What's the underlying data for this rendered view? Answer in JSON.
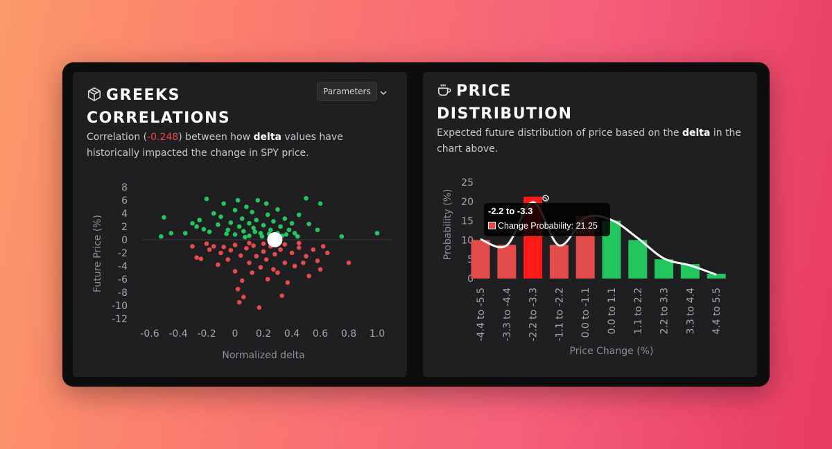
{
  "left_panel": {
    "title_line1": "GREEKS",
    "title_line2": "CORRELATIONS",
    "icon": "cube-icon",
    "parameters_label": "Parameters",
    "desc_pre": "Correlation (",
    "desc_value": "-0.248",
    "desc_mid": ") between how ",
    "desc_bold": "delta",
    "desc_post": " values have historically impacted the change in SPY price."
  },
  "right_panel": {
    "title_line1": "PRICE",
    "title_line2": "DISTRIBUTION",
    "icon": "coffee-cup-icon",
    "desc_pre": "Expected future distribution of price based on the ",
    "desc_bold": "delta",
    "desc_post": " in the chart above."
  },
  "tooltip": {
    "title": "-2.2 to -3.3",
    "label": "Change Probability: 21.25"
  },
  "colors": {
    "positive": "#22c55e",
    "negative": "#e44b4b",
    "highlight": "#ff1a1a",
    "marker": "#ffffff"
  },
  "chart_data": [
    {
      "type": "scatter",
      "xlabel": "Normalized delta",
      "ylabel": "Future Price (%)",
      "xlim": [
        -0.6,
        1.0
      ],
      "ylim": [
        -12,
        8
      ],
      "xticks": [
        "-0.6",
        "-0.4",
        "-0.2",
        "0",
        "0.2",
        "0.4",
        "0.6",
        "0.8",
        "1.0"
      ],
      "yticks": [
        "8",
        "6",
        "4",
        "2",
        "0",
        "-2",
        "-4",
        "-6",
        "-8",
        "-10",
        "-12"
      ],
      "current_point": {
        "x": 0.28,
        "y": 0.0
      },
      "series": [
        {
          "name": "positive",
          "points": [
            [
              -0.5,
              3.4
            ],
            [
              -0.52,
              0.5
            ],
            [
              -0.45,
              1.0
            ],
            [
              -0.35,
              1.0
            ],
            [
              -0.3,
              2.5
            ],
            [
              -0.27,
              2.0
            ],
            [
              -0.25,
              3.0
            ],
            [
              -0.2,
              6.2
            ],
            [
              -0.18,
              1.2
            ],
            [
              -0.15,
              4.0
            ],
            [
              -0.12,
              2.3
            ],
            [
              -0.1,
              3.5
            ],
            [
              -0.08,
              5.5
            ],
            [
              -0.05,
              1.5
            ],
            [
              -0.03,
              2.6
            ],
            [
              0.0,
              4.5
            ],
            [
              0.0,
              0.8
            ],
            [
              0.02,
              6.0
            ],
            [
              0.03,
              2.0
            ],
            [
              0.05,
              3.2
            ],
            [
              0.06,
              1.3
            ],
            [
              0.08,
              5.0
            ],
            [
              0.1,
              2.5
            ],
            [
              0.1,
              0.6
            ],
            [
              0.12,
              4.2
            ],
            [
              0.13,
              1.8
            ],
            [
              0.15,
              3.0
            ],
            [
              0.16,
              6.0
            ],
            [
              0.18,
              1.0
            ],
            [
              0.2,
              2.2
            ],
            [
              0.22,
              5.5
            ],
            [
              0.23,
              3.8
            ],
            [
              0.25,
              1.5
            ],
            [
              0.27,
              2.8
            ],
            [
              0.3,
              4.6
            ],
            [
              0.3,
              1.0
            ],
            [
              0.32,
              2.0
            ],
            [
              0.35,
              3.2
            ],
            [
              0.38,
              1.5
            ],
            [
              0.4,
              2.5
            ],
            [
              0.42,
              1.0
            ],
            [
              0.45,
              3.8
            ],
            [
              0.5,
              6.3
            ],
            [
              0.52,
              2.4
            ],
            [
              0.58,
              1.5
            ],
            [
              0.6,
              5.5
            ],
            [
              0.75,
              0.5
            ],
            [
              1.0,
              1.0
            ],
            [
              -0.22,
              1.6
            ],
            [
              -0.06,
              0.9
            ],
            [
              0.07,
              0.4
            ],
            [
              0.14,
              1.2
            ],
            [
              0.19,
              0.5
            ],
            [
              0.24,
              0.9
            ],
            [
              0.33,
              0.6
            ],
            [
              0.36,
              0.8
            ],
            [
              0.44,
              0.5
            ]
          ]
        },
        {
          "name": "negative",
          "points": [
            [
              -0.3,
              -1.0
            ],
            [
              -0.27,
              -2.7
            ],
            [
              -0.24,
              -2.9
            ],
            [
              -0.2,
              -0.6
            ],
            [
              -0.18,
              -1.5
            ],
            [
              -0.15,
              -1.0
            ],
            [
              -0.12,
              -3.8
            ],
            [
              -0.1,
              -2.0
            ],
            [
              -0.08,
              -1.1
            ],
            [
              -0.05,
              -3.0
            ],
            [
              -0.03,
              -1.6
            ],
            [
              0.0,
              -4.8
            ],
            [
              0.0,
              -0.8
            ],
            [
              0.02,
              -7.5
            ],
            [
              0.03,
              -9.5
            ],
            [
              0.04,
              -2.4
            ],
            [
              0.05,
              -6.2
            ],
            [
              0.06,
              -8.7
            ],
            [
              0.08,
              -1.3
            ],
            [
              0.1,
              -3.5
            ],
            [
              0.12,
              -5.0
            ],
            [
              0.13,
              -0.9
            ],
            [
              0.15,
              -2.5
            ],
            [
              0.17,
              -10.3
            ],
            [
              0.18,
              -4.2
            ],
            [
              0.2,
              -1.8
            ],
            [
              0.22,
              -3.0
            ],
            [
              0.23,
              -6.0
            ],
            [
              0.25,
              -1.0
            ],
            [
              0.27,
              -4.5
            ],
            [
              0.28,
              -2.2
            ],
            [
              0.3,
              -5.0
            ],
            [
              0.32,
              -1.5
            ],
            [
              0.33,
              -8.5
            ],
            [
              0.35,
              -3.5
            ],
            [
              0.37,
              -6.5
            ],
            [
              0.4,
              -2.0
            ],
            [
              0.42,
              -4.0
            ],
            [
              0.45,
              -1.2
            ],
            [
              0.48,
              -3.5
            ],
            [
              0.5,
              -2.5
            ],
            [
              0.52,
              -5.5
            ],
            [
              0.55,
              -1.5
            ],
            [
              0.58,
              -3.2
            ],
            [
              0.6,
              -4.5
            ],
            [
              0.62,
              -1.0
            ],
            [
              0.65,
              -2.0
            ],
            [
              0.8,
              -3.5
            ],
            [
              0.1,
              -0.5
            ],
            [
              0.2,
              -0.6
            ],
            [
              0.35,
              -0.7
            ],
            [
              0.45,
              -0.5
            ]
          ]
        }
      ]
    },
    {
      "type": "bar",
      "xlabel": "Price Change (%)",
      "ylabel": "Probability (%)",
      "ylim": [
        0,
        25
      ],
      "yticks": [
        "25",
        "20",
        "15",
        "10",
        "5",
        "0"
      ],
      "categories": [
        "-4.4 to -5.5",
        "-3.3 to -4.4",
        "-2.2 to -3.3",
        "-1.1 to -2.2",
        "0.0 to -1.1",
        "0.0 to 1.1",
        "1.1 to 2.2",
        "2.2 to 3.3",
        "3.3 to 4.4",
        "4.4 to 5.5"
      ],
      "values": [
        10,
        8.75,
        21.25,
        8.75,
        16.25,
        15,
        10,
        5,
        3.75,
        1.25
      ],
      "colors": [
        "negative",
        "negative",
        "highlight",
        "negative",
        "negative",
        "positive",
        "positive",
        "positive",
        "positive",
        "positive"
      ],
      "highlighted_index": 2,
      "density_curve": [
        10.2,
        8.6,
        19.8,
        8.6,
        15.8,
        15.2,
        10.5,
        5.2,
        3.4,
        1.0
      ]
    }
  ]
}
